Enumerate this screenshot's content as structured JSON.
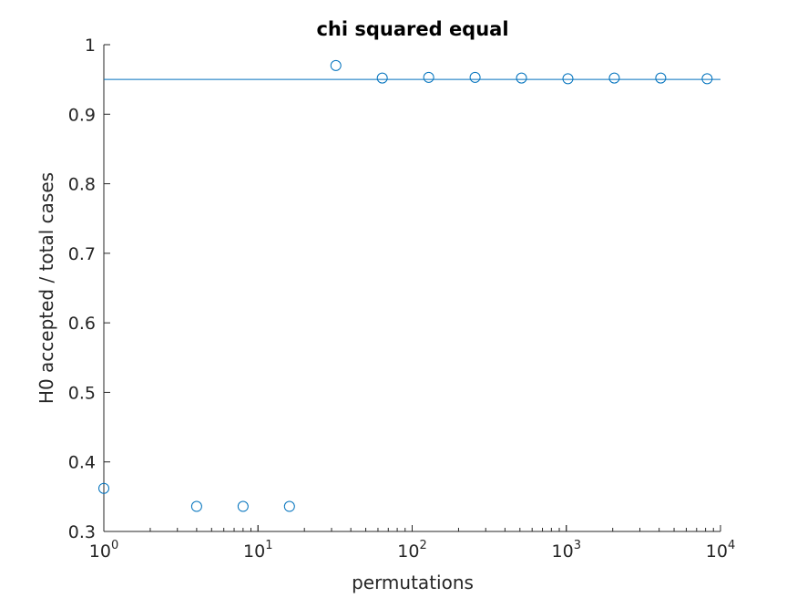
{
  "chart_data": {
    "type": "scatter",
    "title": "chi squared equal",
    "xlabel": "permutations",
    "ylabel": "H0 accepted / total cases",
    "xscale": "log",
    "xlim": [
      1,
      10000
    ],
    "ylim": [
      0.3,
      1
    ],
    "grid": false,
    "marker_color": "#0072BD",
    "x": [
      1,
      4,
      8,
      16,
      32,
      64,
      128,
      256,
      512,
      1024,
      2048,
      4096,
      8192
    ],
    "y": [
      0.362,
      0.336,
      0.336,
      0.336,
      0.97,
      0.952,
      0.953,
      0.953,
      0.952,
      0.951,
      0.952,
      0.952,
      0.951
    ],
    "reference_line": {
      "y": 0.95
    },
    "y_ticks": [
      {
        "value": 0.3,
        "label": "0.3"
      },
      {
        "value": 0.4,
        "label": "0.4"
      },
      {
        "value": 0.5,
        "label": "0.5"
      },
      {
        "value": 0.6,
        "label": "0.6"
      },
      {
        "value": 0.7,
        "label": "0.7"
      },
      {
        "value": 0.8,
        "label": "0.8"
      },
      {
        "value": 0.9,
        "label": "0.9"
      },
      {
        "value": 1.0,
        "label": "1"
      }
    ],
    "x_ticks": [
      {
        "value": 1,
        "base": "10",
        "exp": "0"
      },
      {
        "value": 10,
        "base": "10",
        "exp": "1"
      },
      {
        "value": 100,
        "base": "10",
        "exp": "2"
      },
      {
        "value": 1000,
        "base": "10",
        "exp": "3"
      },
      {
        "value": 10000,
        "base": "10",
        "exp": "4"
      }
    ]
  }
}
